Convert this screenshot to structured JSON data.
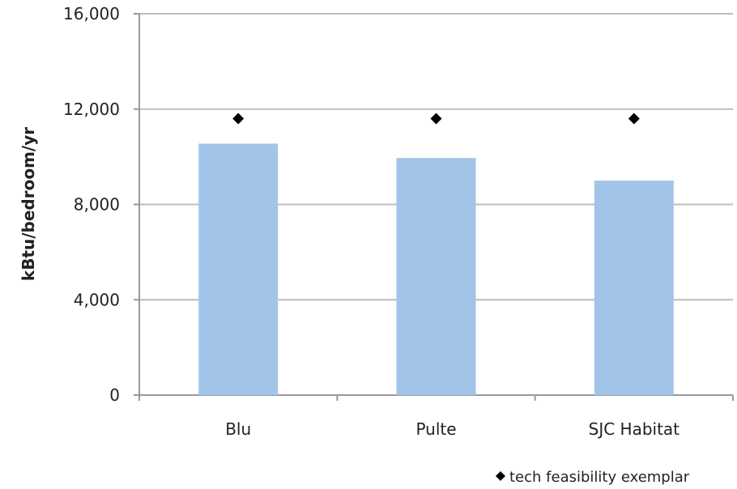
{
  "chart_data": {
    "type": "bar",
    "categories": [
      "Blu",
      "Pulte",
      "SJC Habitat"
    ],
    "series": [
      {
        "values": [
          10550,
          9950,
          9000
        ],
        "color": "#a3c4e9"
      },
      {
        "name": "tech feasibility exemplar",
        "marker": "diamond",
        "values": [
          11600,
          11600,
          11600
        ],
        "color": "#000000"
      }
    ],
    "ylabel": "kBtu/bedroom/yr",
    "xlabel": "",
    "ylim": [
      0,
      16000
    ],
    "yticks": [
      0,
      4000,
      8000,
      12000,
      16000
    ],
    "ytick_labels": [
      "0",
      "4,000",
      "8,000",
      "12,000",
      "16,000"
    ],
    "grid": true,
    "legend_position": "bottom-right",
    "legend_label": "tech feasibility exemplar"
  }
}
